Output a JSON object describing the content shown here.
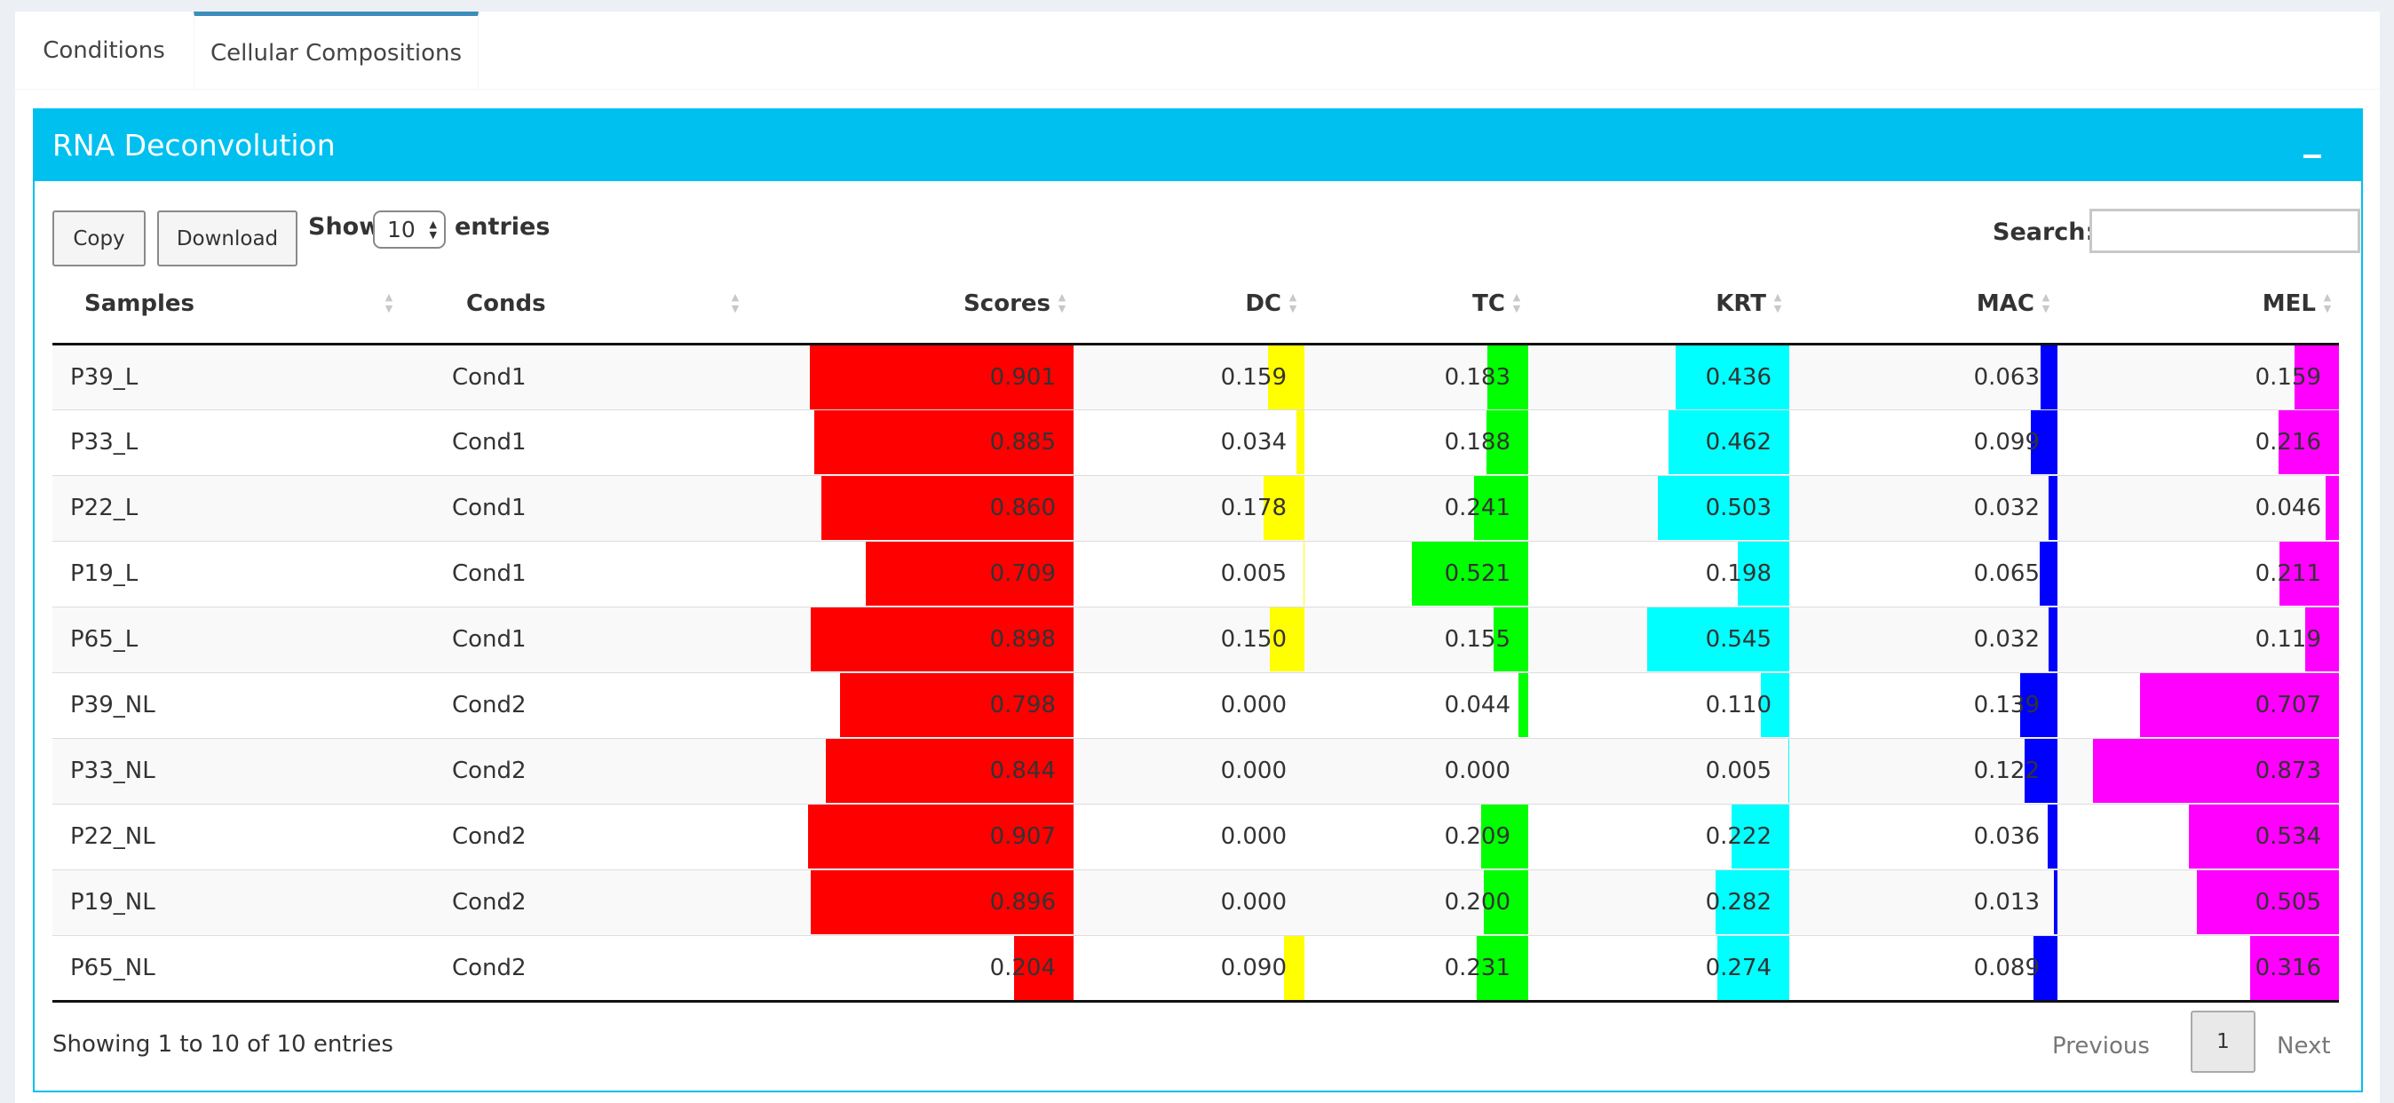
{
  "tabs": [
    {
      "label": "Conditions",
      "active": false
    },
    {
      "label": "Cellular Compositions",
      "active": true
    }
  ],
  "panel": {
    "title": "RNA Deconvolution",
    "header_color": "#00c0ef"
  },
  "toolbar": {
    "copy_label": "Copy",
    "download_label": "Download",
    "show_label": "Show",
    "entries_value": "10",
    "entries_label": "entries",
    "search_label": "Search:",
    "search_value": ""
  },
  "table": {
    "columns": [
      "Samples",
      "Conds",
      "Scores",
      "DC",
      "TC",
      "KRT",
      "MAC",
      "MEL"
    ],
    "bar_colors": {
      "Scores": "#ff0000",
      "DC": "#ffff00",
      "TC": "#00ff00",
      "KRT": "#00ffff",
      "MAC": "#0000ff",
      "MEL": "#ff00ff"
    },
    "rows": [
      {
        "Samples": "P39_L",
        "Conds": "Cond1",
        "Scores": "0.901",
        "DC": "0.159",
        "TC": "0.183",
        "KRT": "0.436",
        "MAC": "0.063",
        "MEL": "0.159"
      },
      {
        "Samples": "P33_L",
        "Conds": "Cond1",
        "Scores": "0.885",
        "DC": "0.034",
        "TC": "0.188",
        "KRT": "0.462",
        "MAC": "0.099",
        "MEL": "0.216"
      },
      {
        "Samples": "P22_L",
        "Conds": "Cond1",
        "Scores": "0.860",
        "DC": "0.178",
        "TC": "0.241",
        "KRT": "0.503",
        "MAC": "0.032",
        "MEL": "0.046"
      },
      {
        "Samples": "P19_L",
        "Conds": "Cond1",
        "Scores": "0.709",
        "DC": "0.005",
        "TC": "0.521",
        "KRT": "0.198",
        "MAC": "0.065",
        "MEL": "0.211"
      },
      {
        "Samples": "P65_L",
        "Conds": "Cond1",
        "Scores": "0.898",
        "DC": "0.150",
        "TC": "0.155",
        "KRT": "0.545",
        "MAC": "0.032",
        "MEL": "0.119"
      },
      {
        "Samples": "P39_NL",
        "Conds": "Cond2",
        "Scores": "0.798",
        "DC": "0.000",
        "TC": "0.044",
        "KRT": "0.110",
        "MAC": "0.139",
        "MEL": "0.707"
      },
      {
        "Samples": "P33_NL",
        "Conds": "Cond2",
        "Scores": "0.844",
        "DC": "0.000",
        "TC": "0.000",
        "KRT": "0.005",
        "MAC": "0.122",
        "MEL": "0.873"
      },
      {
        "Samples": "P22_NL",
        "Conds": "Cond2",
        "Scores": "0.907",
        "DC": "0.000",
        "TC": "0.209",
        "KRT": "0.222",
        "MAC": "0.036",
        "MEL": "0.534"
      },
      {
        "Samples": "P19_NL",
        "Conds": "Cond2",
        "Scores": "0.896",
        "DC": "0.000",
        "TC": "0.200",
        "KRT": "0.282",
        "MAC": "0.013",
        "MEL": "0.505"
      },
      {
        "Samples": "P65_NL",
        "Conds": "Cond2",
        "Scores": "0.204",
        "DC": "0.090",
        "TC": "0.231",
        "KRT": "0.274",
        "MAC": "0.089",
        "MEL": "0.316"
      }
    ]
  },
  "footer": {
    "info": "Showing 1 to 10 of 10 entries",
    "previous_label": "Previous",
    "current_page": "1",
    "next_label": "Next"
  }
}
